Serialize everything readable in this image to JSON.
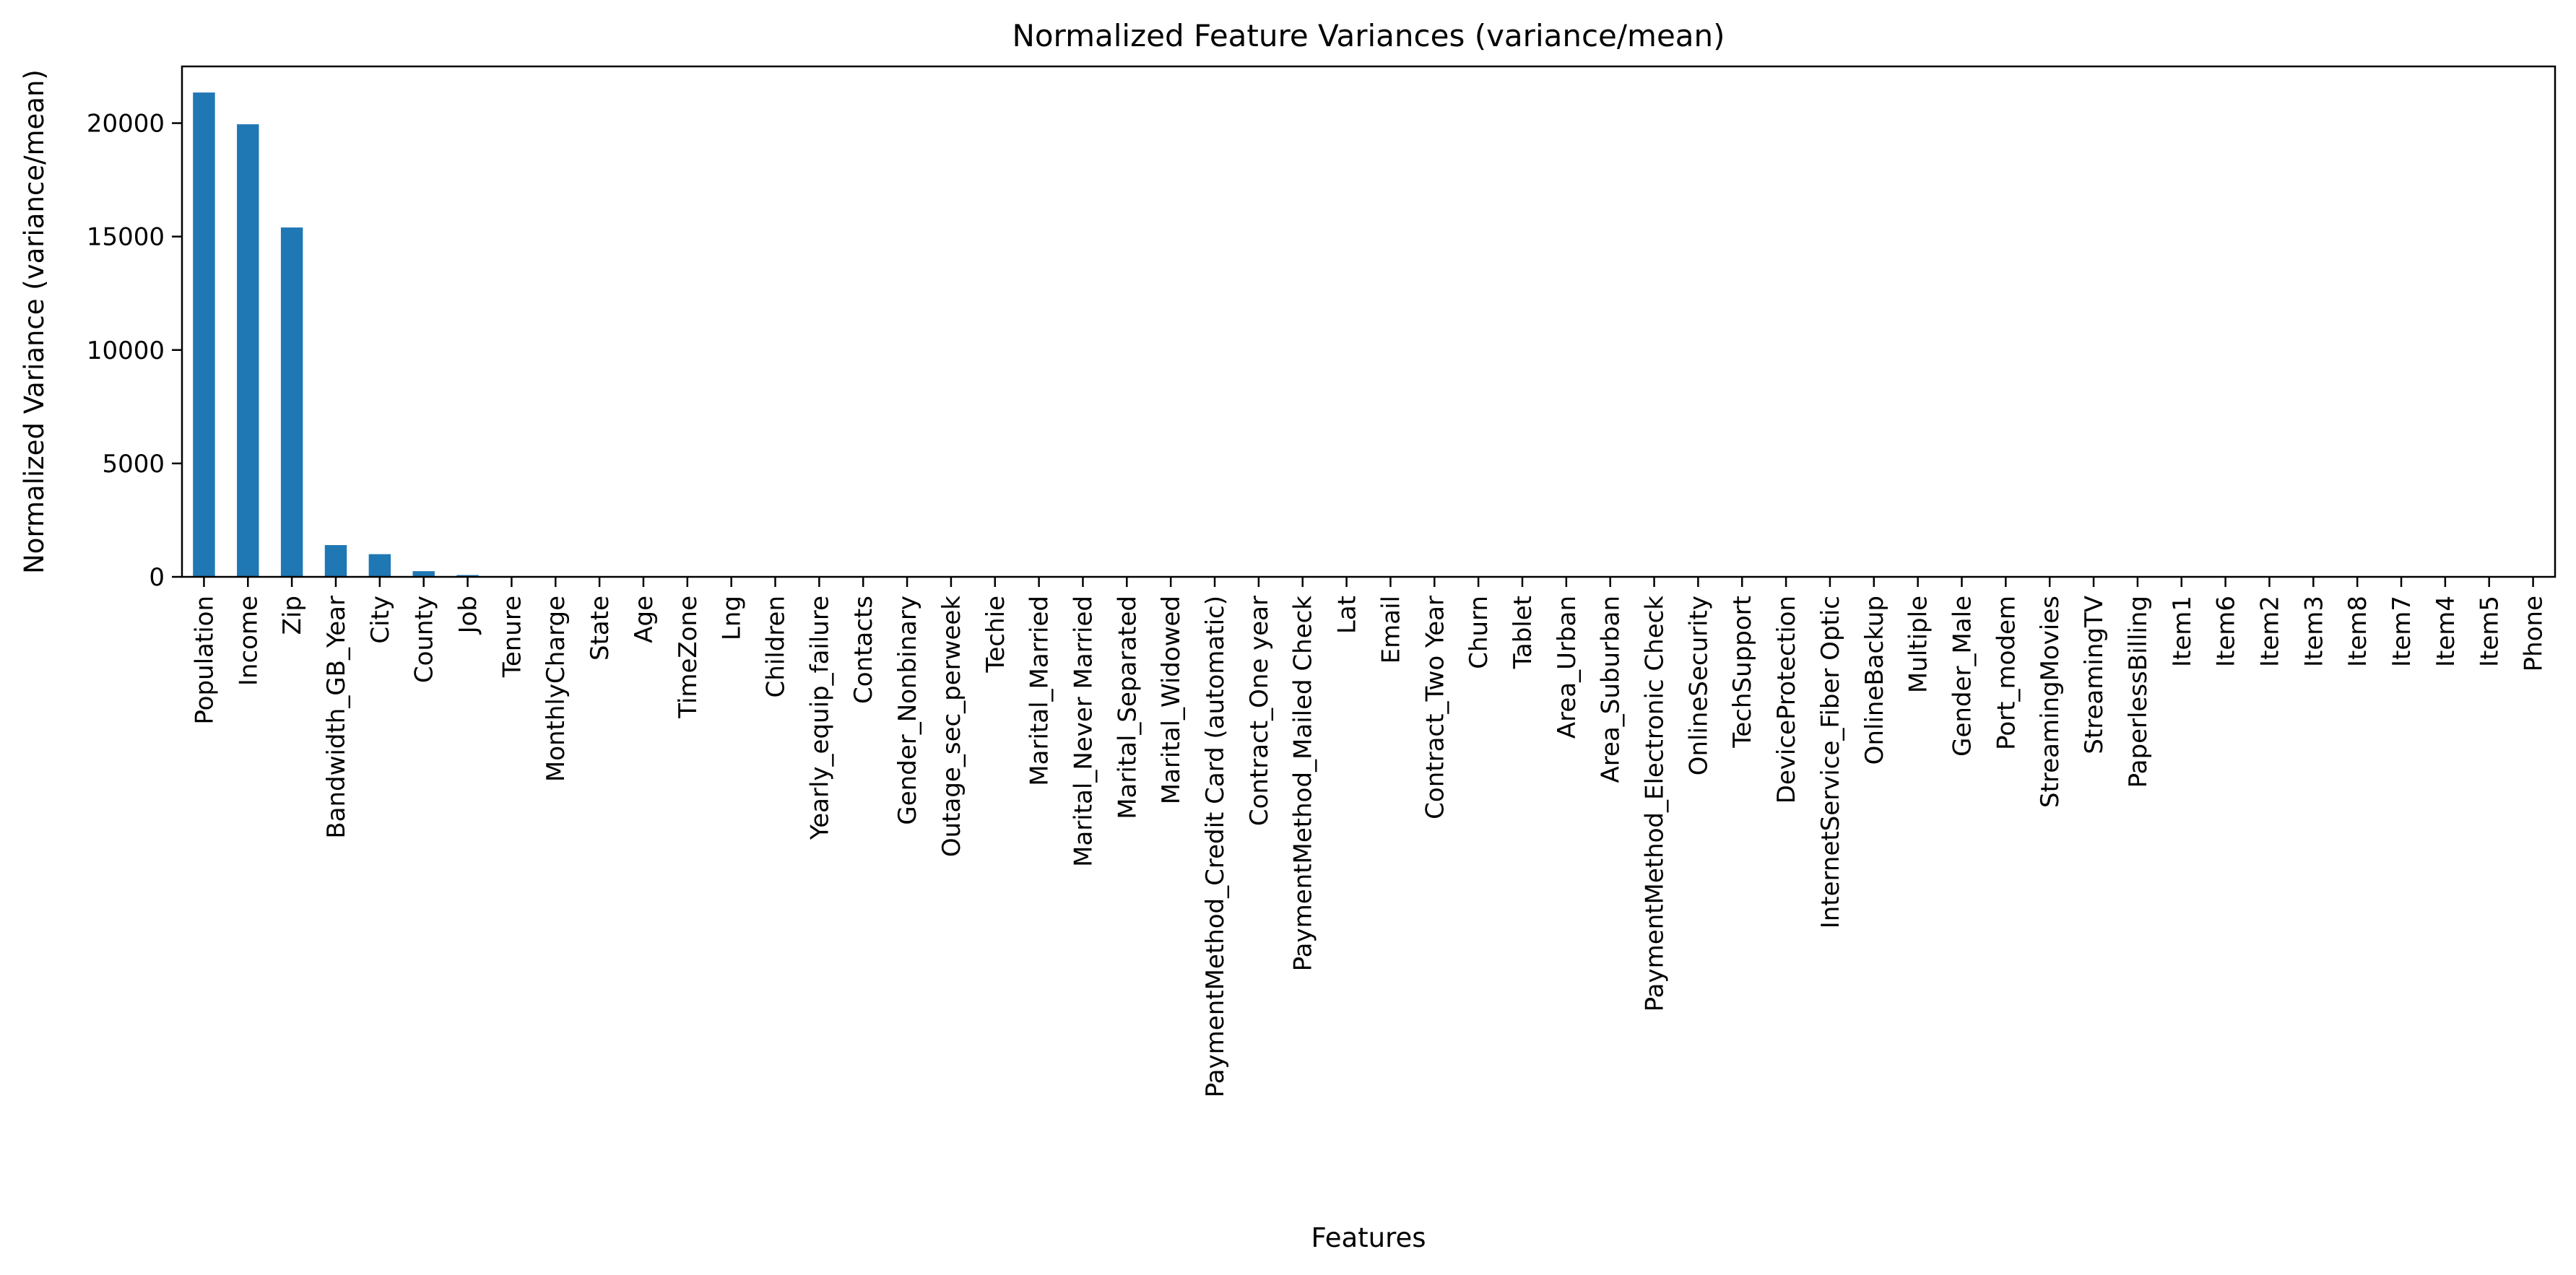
{
  "chart_data": {
    "type": "bar",
    "title": "Normalized Feature Variances (variance/mean)",
    "xlabel": "Features",
    "ylabel": "Normalized Variance (variance/mean)",
    "ylim": [
      0,
      22500
    ],
    "yticks": [
      0,
      5000,
      10000,
      15000,
      20000
    ],
    "grid": false,
    "legend": "none",
    "bar_color": "#1f77b4",
    "categories": [
      "Population",
      "Income",
      "Zip",
      "Bandwidth_GB_Year",
      "City",
      "County",
      "Job",
      "Tenure",
      "MonthlyCharge",
      "State",
      "Age",
      "TimeZone",
      "Lng",
      "Children",
      "Yearly_equip_failure",
      "Contacts",
      "Gender_Nonbinary",
      "Outage_sec_perweek",
      "Techie",
      "Marital_Married",
      "Marital_Never Married",
      "Marital_Separated",
      "Marital_Widowed",
      "PaymentMethod_Credit Card (automatic)",
      "Contract_One year",
      "PaymentMethod_Mailed Check",
      "Lat",
      "Email",
      "Contract_Two Year",
      "Churn",
      "Tablet",
      "Area_Urban",
      "Area_Suburban",
      "PaymentMethod_Electronic Check",
      "OnlineSecurity",
      "TechSupport",
      "DeviceProtection",
      "InternetService_Fiber Optic",
      "OnlineBackup",
      "Multiple",
      "Gender_Male",
      "Port_modem",
      "StreamingMovies",
      "StreamingTV",
      "PaperlessBilling",
      "Item1",
      "Item6",
      "Item2",
      "Item3",
      "Item8",
      "Item7",
      "Item4",
      "Item5",
      "Phone"
    ],
    "values": [
      21350,
      19950,
      15400,
      1400,
      1000,
      250,
      80,
      25,
      15,
      8,
      5,
      3,
      2,
      2,
      1.5,
      1.2,
      1,
      1,
      0.9,
      0.8,
      0.7,
      0.7,
      0.7,
      0.7,
      0.6,
      0.6,
      0.5,
      0.5,
      0.5,
      0.5,
      0.5,
      0.5,
      0.5,
      0.5,
      0.4,
      0.4,
      0.4,
      0.4,
      0.4,
      0.4,
      0.3,
      0.3,
      0.3,
      0.3,
      0.3,
      0.2,
      0.2,
      0.2,
      0.2,
      0.2,
      0.2,
      0.2,
      0.2,
      0.1
    ]
  }
}
